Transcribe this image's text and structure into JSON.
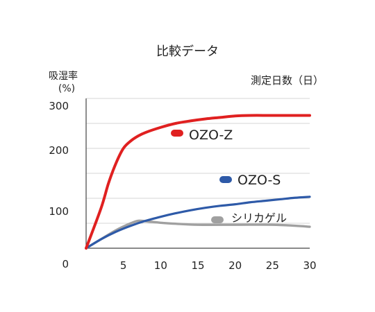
{
  "chart_data": {
    "type": "line",
    "title": "比較データ",
    "ylabel": [
      "吸湿率",
      "(%)"
    ],
    "xlabel": "測定日数（日）",
    "x_ticks": [
      5,
      10,
      15,
      20,
      25,
      30
    ],
    "y_ticks": [
      0,
      100,
      200,
      300
    ],
    "xlim": [
      0,
      30
    ],
    "ylim": [
      0,
      300
    ],
    "grid": true,
    "legend": "inline labels",
    "series": [
      {
        "name": "OZO-Z",
        "color": "#e02020",
        "x": [
          0,
          2,
          3,
          4,
          5,
          6,
          7,
          8,
          10,
          12,
          14,
          16,
          18,
          20,
          22,
          25,
          30
        ],
        "y": [
          0,
          80,
          130,
          170,
          200,
          215,
          225,
          232,
          242,
          250,
          255,
          259,
          262,
          265,
          266,
          266,
          266
        ]
      },
      {
        "name": "OZO-S",
        "color": "#2e5aa8",
        "x": [
          0,
          2,
          4,
          6,
          8,
          10,
          12,
          14,
          16,
          18,
          20,
          22,
          24,
          26,
          28,
          30
        ],
        "y": [
          0,
          18,
          33,
          45,
          55,
          63,
          70,
          76,
          81,
          85,
          88,
          92,
          95,
          98,
          101,
          103
        ]
      },
      {
        "name": "シリカゲル",
        "color": "#a0a0a0",
        "x": [
          0,
          2,
          4,
          6,
          7,
          8,
          10,
          12,
          15,
          20,
          25,
          28,
          30
        ],
        "y": [
          0,
          18,
          36,
          50,
          55,
          54,
          51,
          49,
          47,
          47,
          47,
          45,
          43
        ]
      }
    ]
  }
}
